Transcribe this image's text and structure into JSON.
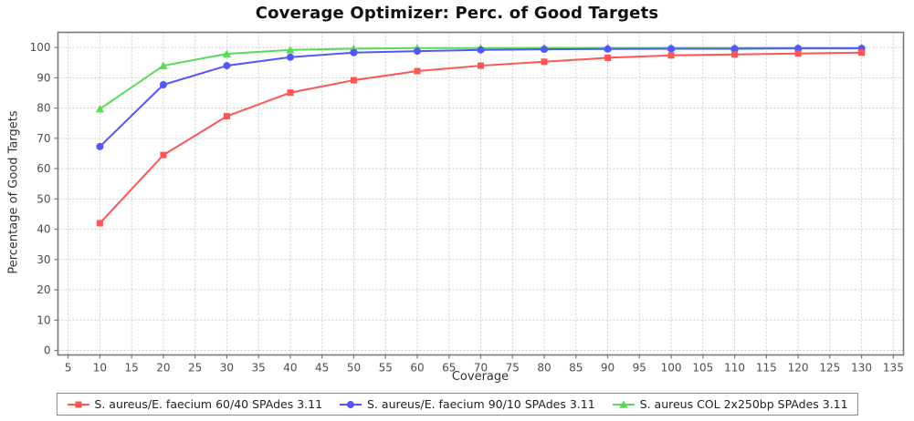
{
  "chart_data": {
    "type": "line",
    "title": "Coverage Optimizer: Perc. of Good Targets",
    "xlabel": "Coverage",
    "ylabel": "Percentage of Good Targets",
    "x": [
      10,
      20,
      30,
      40,
      50,
      60,
      70,
      80,
      90,
      100,
      110,
      120,
      130
    ],
    "series": [
      {
        "name": "S. aureus/E. faecium 60/40 SPAdes 3.11",
        "marker": "square",
        "color": "#FF5555",
        "values": [
          42.0,
          64.5,
          77.3,
          85.1,
          89.2,
          92.2,
          94.0,
          95.3,
          96.6,
          97.4,
          97.7,
          98.0,
          98.3
        ]
      },
      {
        "name": "S. aureus/E. faecium 90/10 SPAdes 3.11",
        "marker": "circle",
        "color": "#5555FF",
        "values": [
          67.3,
          87.7,
          94.0,
          96.8,
          98.3,
          98.8,
          99.2,
          99.4,
          99.5,
          99.6,
          99.6,
          99.7,
          99.7
        ]
      },
      {
        "name": "S. aureus COL 2x250bp SPAdes 3.11",
        "marker": "triangle",
        "color": "#55DD55",
        "values": [
          79.7,
          94.0,
          97.9,
          99.2,
          99.6,
          99.8,
          99.8,
          99.9,
          99.9,
          99.9,
          99.9,
          99.9,
          99.9
        ]
      }
    ],
    "x_ticks": [
      5,
      10,
      15,
      20,
      25,
      30,
      35,
      40,
      45,
      50,
      55,
      60,
      65,
      70,
      75,
      80,
      85,
      90,
      95,
      100,
      105,
      110,
      115,
      120,
      125,
      130,
      135
    ],
    "y_ticks": [
      0,
      10,
      20,
      30,
      40,
      50,
      60,
      70,
      80,
      90,
      100
    ],
    "xlim": [
      3.4,
      136.6
    ],
    "ylim": [
      -1.5,
      105
    ],
    "grid": true,
    "legend_position": "bottom",
    "colors": {
      "grid": "#cccccc",
      "plot_border": "#7a7a7a",
      "tick_marks": "#7a7a7a",
      "tick_labels": "#4d4d4d",
      "axis_labels": "#333333",
      "title": "#111111",
      "background": "#ffffff"
    }
  }
}
